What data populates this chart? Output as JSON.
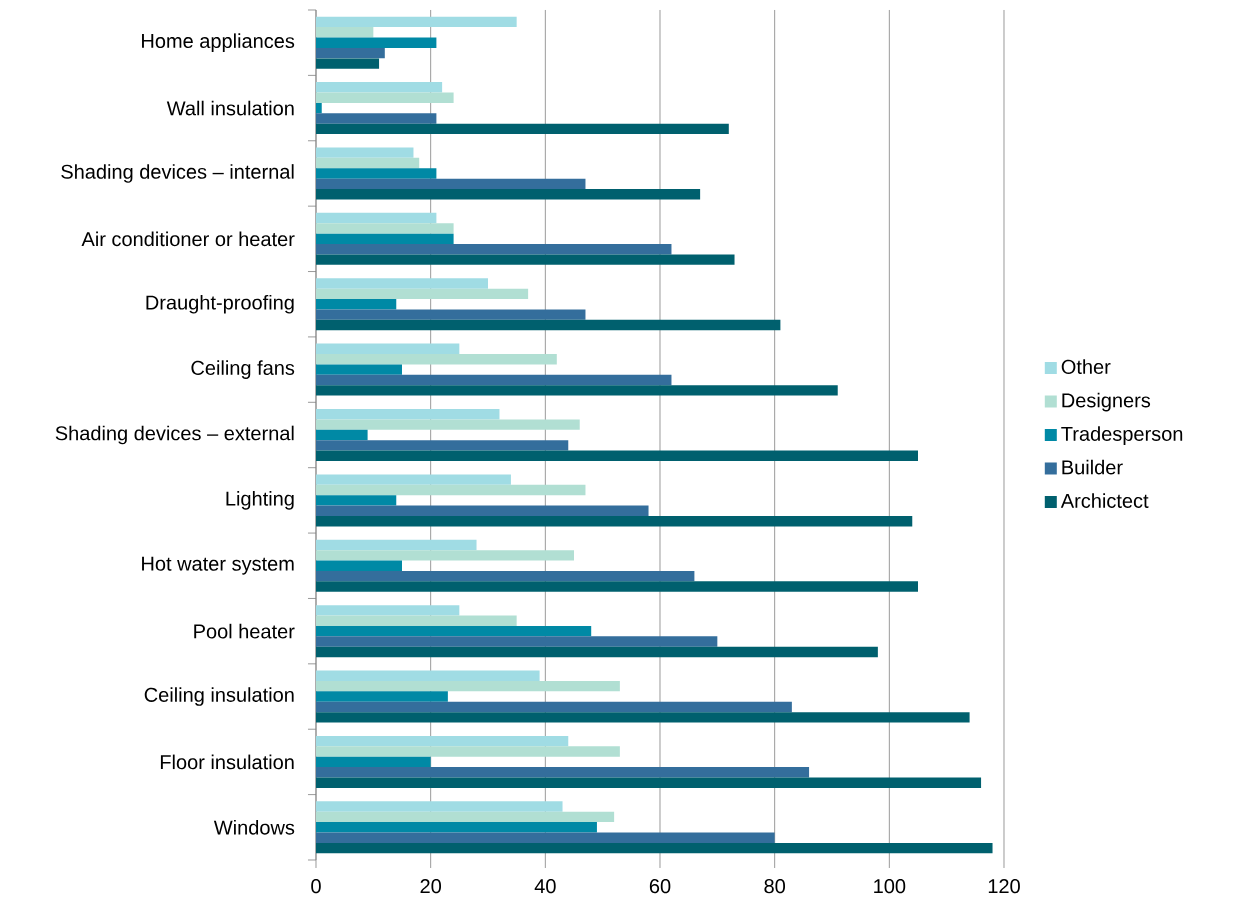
{
  "chart_data": {
    "type": "bar",
    "orientation": "horizontal",
    "categories": [
      "Home appliances",
      "Wall insulation",
      "Shading devices – internal",
      "Air conditioner or heater",
      "Draught-proofing",
      "Ceiling fans",
      "Shading devices – external",
      "Lighting",
      "Hot water system",
      "Pool heater",
      "Ceiling insulation",
      "Floor insulation",
      "Windows"
    ],
    "series": [
      {
        "name": "Other",
        "color": "#a0dce4",
        "values": [
          35,
          22,
          17,
          21,
          30,
          25,
          32,
          34,
          28,
          25,
          39,
          44,
          43
        ]
      },
      {
        "name": "Designers",
        "color": "#b1dfd3",
        "values": [
          10,
          24,
          18,
          24,
          37,
          42,
          46,
          47,
          45,
          35,
          53,
          53,
          52
        ]
      },
      {
        "name": "Tradesperson",
        "color": "#0089a5",
        "values": [
          21,
          1,
          21,
          24,
          14,
          15,
          9,
          14,
          15,
          48,
          23,
          20,
          49
        ]
      },
      {
        "name": "Builder",
        "color": "#346e9c",
        "values": [
          12,
          21,
          47,
          62,
          47,
          62,
          44,
          58,
          66,
          70,
          83,
          86,
          80
        ]
      },
      {
        "name": "Archictect",
        "color": "#00606e",
        "values": [
          11,
          72,
          67,
          73,
          81,
          91,
          105,
          104,
          105,
          98,
          114,
          116,
          118
        ]
      }
    ],
    "xlim": [
      0,
      120
    ],
    "xticks": [
      0,
      20,
      40,
      60,
      80,
      100,
      120
    ],
    "grid": "x",
    "legend": "right"
  }
}
